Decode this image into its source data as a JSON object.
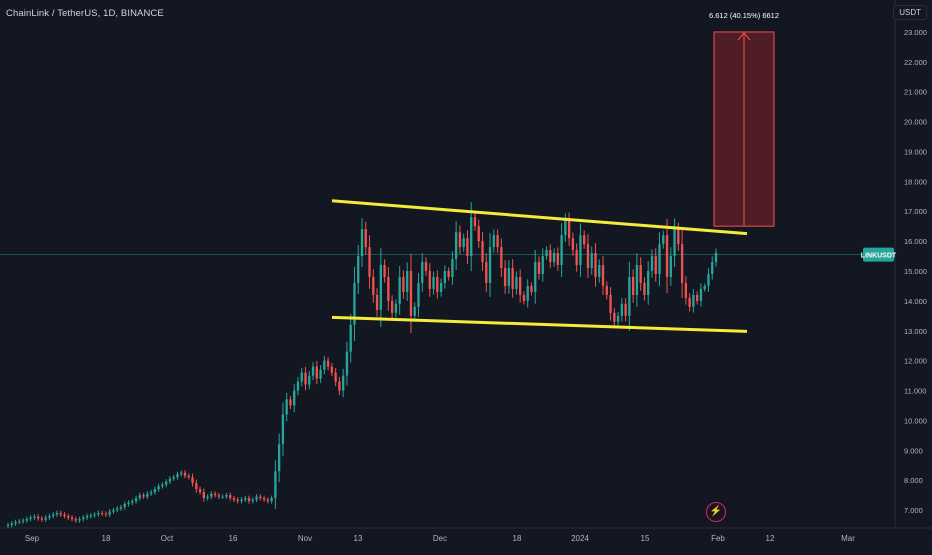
{
  "header": {
    "title": "ChainLink / TetherUS, 1D, BINANCE",
    "currency": "USDT"
  },
  "price_label": "LINKUSDT",
  "measure_label": "6.612 (40.15%) 6612",
  "lightning_icon": "lightning-icon",
  "colors": {
    "background": "#131722",
    "up": "#26a69a",
    "down": "#ef5350",
    "channel": "#f5eb3b",
    "target_fill": "#5c1f28",
    "target_stroke": "#ef5350",
    "price_line": "#26a69a"
  },
  "chart_data": {
    "type": "candlestick",
    "symbol": "ChainLink / TetherUS, 1D, BINANCE",
    "ylim": [
      6.4,
      23.4
    ],
    "y_ticks": [
      "7.000",
      "8.000",
      "9.000",
      "10.000",
      "11.000",
      "12.000",
      "13.000",
      "14.000",
      "15.000",
      "16.000",
      "17.000",
      "18.000",
      "19.000",
      "20.000",
      "21.000",
      "22.000",
      "23.000"
    ],
    "x_ticks": [
      "Sep",
      "18",
      "Oct",
      "16",
      "Nov",
      "13",
      "Dec",
      "18",
      "2024",
      "15",
      "Feb",
      "12",
      "Mar"
    ],
    "last_price": 15.55,
    "closes": [
      6.5,
      6.55,
      6.6,
      6.62,
      6.65,
      6.7,
      6.75,
      6.78,
      6.72,
      6.68,
      6.75,
      6.8,
      6.85,
      6.9,
      6.85,
      6.8,
      6.75,
      6.7,
      6.65,
      6.7,
      6.75,
      6.8,
      6.82,
      6.85,
      6.9,
      6.88,
      6.85,
      6.95,
      7.0,
      7.05,
      7.1,
      7.2,
      7.25,
      7.3,
      7.4,
      7.5,
      7.45,
      7.55,
      7.6,
      7.7,
      7.8,
      7.85,
      7.95,
      8.05,
      8.1,
      8.2,
      8.25,
      8.15,
      8.1,
      7.9,
      7.7,
      7.6,
      7.4,
      7.45,
      7.55,
      7.5,
      7.45,
      7.45,
      7.5,
      7.4,
      7.35,
      7.3,
      7.35,
      7.4,
      7.3,
      7.35,
      7.45,
      7.4,
      7.35,
      7.3,
      7.4,
      8.3,
      9.2,
      10.2,
      10.7,
      10.5,
      11.0,
      11.3,
      11.6,
      11.2,
      11.5,
      11.8,
      11.4,
      11.7,
      12.0,
      11.8,
      11.6,
      11.3,
      11.0,
      11.5,
      12.3,
      13.2,
      14.6,
      15.5,
      16.4,
      15.8,
      14.8,
      14.2,
      13.7,
      15.2,
      14.8,
      14.0,
      13.6,
      13.9,
      14.8,
      14.3,
      15.0,
      13.5,
      13.8,
      14.6,
      15.3,
      15.0,
      14.4,
      14.8,
      14.3,
      14.6,
      15.0,
      14.8,
      15.4,
      16.3,
      15.8,
      16.1,
      15.5,
      16.8,
      16.5,
      16.0,
      15.3,
      14.6,
      15.8,
      16.2,
      15.8,
      15.1,
      14.5,
      15.1,
      14.4,
      14.8,
      14.2,
      14.0,
      14.5,
      14.3,
      15.3,
      14.9,
      15.5,
      15.7,
      15.3,
      15.6,
      15.2,
      16.2,
      16.7,
      16.1,
      15.7,
      15.2,
      16.2,
      15.9,
      15.1,
      15.6,
      14.8,
      15.2,
      14.5,
      14.2,
      13.6,
      13.3,
      13.5,
      13.9,
      13.5,
      14.8,
      14.2,
      15.2,
      14.6,
      14.2,
      15.0,
      15.5,
      14.9,
      15.9,
      16.2,
      14.8,
      15.5,
      16.4,
      15.9,
      14.6,
      14.1,
      13.8,
      14.2,
      14.0,
      14.4,
      14.5,
      14.9,
      15.3,
      15.6
    ]
  },
  "annotations": {
    "upper_channel": {
      "x0": 0,
      "y0": 17.35,
      "x1": 1,
      "y1": 16.25
    },
    "lower_channel": {
      "x0": 0,
      "y0": 13.45,
      "x1": 1,
      "y1": 12.98
    },
    "target_box": {
      "low": 16.5,
      "high": 23.0
    }
  }
}
